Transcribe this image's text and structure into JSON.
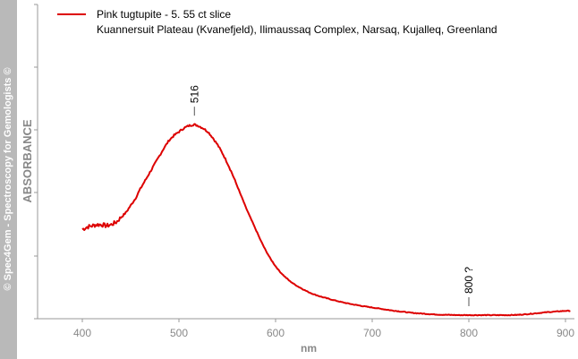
{
  "watermark": "© Spec4Gem - Spectroscopy for Gemologists ©",
  "colors": {
    "series": "#dd0000",
    "axis": "#999999",
    "label": "#888888",
    "text": "#000000",
    "banner": "#b9b9b9"
  },
  "chart_data": {
    "type": "line",
    "legend": {
      "line1": "Pink tugtupite - 5. 55 ct slice",
      "line2": "Kuannersuit Plateau (Kvanefjeld), Ilimaussaq Complex, Narsaq, Kujalleq, Greenland",
      "placement": "top-left"
    },
    "xlabel": "nm",
    "ylabel": "ABSORBANCE",
    "xlim": [
      345,
      905
    ],
    "ylim": [
      0,
      1
    ],
    "xticks": [
      400,
      500,
      600,
      700,
      800,
      900
    ],
    "xtick_labels": [
      "400",
      "500",
      "600",
      "700",
      "800",
      "900"
    ],
    "yticks": [
      0,
      0.2,
      0.4,
      0.6,
      0.8,
      1.0
    ],
    "annotations": [
      {
        "x": 516,
        "label": "516"
      },
      {
        "x": 800,
        "label": "800 ?"
      }
    ],
    "series": [
      {
        "name": "Pink tugtupite - 5. 55 ct slice",
        "x": [
          400,
          405,
          410,
          415,
          420,
          425,
          430,
          435,
          440,
          445,
          450,
          455,
          460,
          465,
          470,
          475,
          480,
          485,
          490,
          495,
          500,
          505,
          510,
          515,
          516,
          520,
          525,
          530,
          535,
          540,
          545,
          550,
          555,
          560,
          565,
          570,
          575,
          580,
          585,
          590,
          595,
          600,
          605,
          610,
          615,
          620,
          625,
          630,
          635,
          640,
          645,
          650,
          660,
          670,
          680,
          690,
          700,
          710,
          720,
          730,
          740,
          750,
          760,
          770,
          780,
          790,
          800,
          810,
          820,
          830,
          840,
          850,
          860,
          870,
          880,
          890,
          900,
          905
        ],
        "values": [
          0.36,
          0.37,
          0.375,
          0.38,
          0.38,
          0.375,
          0.38,
          0.39,
          0.41,
          0.43,
          0.46,
          0.49,
          0.53,
          0.565,
          0.6,
          0.635,
          0.67,
          0.705,
          0.735,
          0.755,
          0.77,
          0.785,
          0.795,
          0.8,
          0.8,
          0.795,
          0.785,
          0.77,
          0.745,
          0.715,
          0.68,
          0.64,
          0.595,
          0.545,
          0.495,
          0.445,
          0.4,
          0.355,
          0.31,
          0.27,
          0.235,
          0.205,
          0.18,
          0.16,
          0.142,
          0.128,
          0.116,
          0.105,
          0.095,
          0.087,
          0.08,
          0.074,
          0.063,
          0.053,
          0.045,
          0.038,
          0.032,
          0.026,
          0.02,
          0.015,
          0.01,
          0.007,
          0.004,
          0.002,
          0.001,
          0.0,
          0.0,
          0.0,
          0.0,
          0.0,
          0.0,
          0.001,
          0.004,
          0.008,
          0.012,
          0.015,
          0.018,
          0.018
        ]
      }
    ]
  }
}
